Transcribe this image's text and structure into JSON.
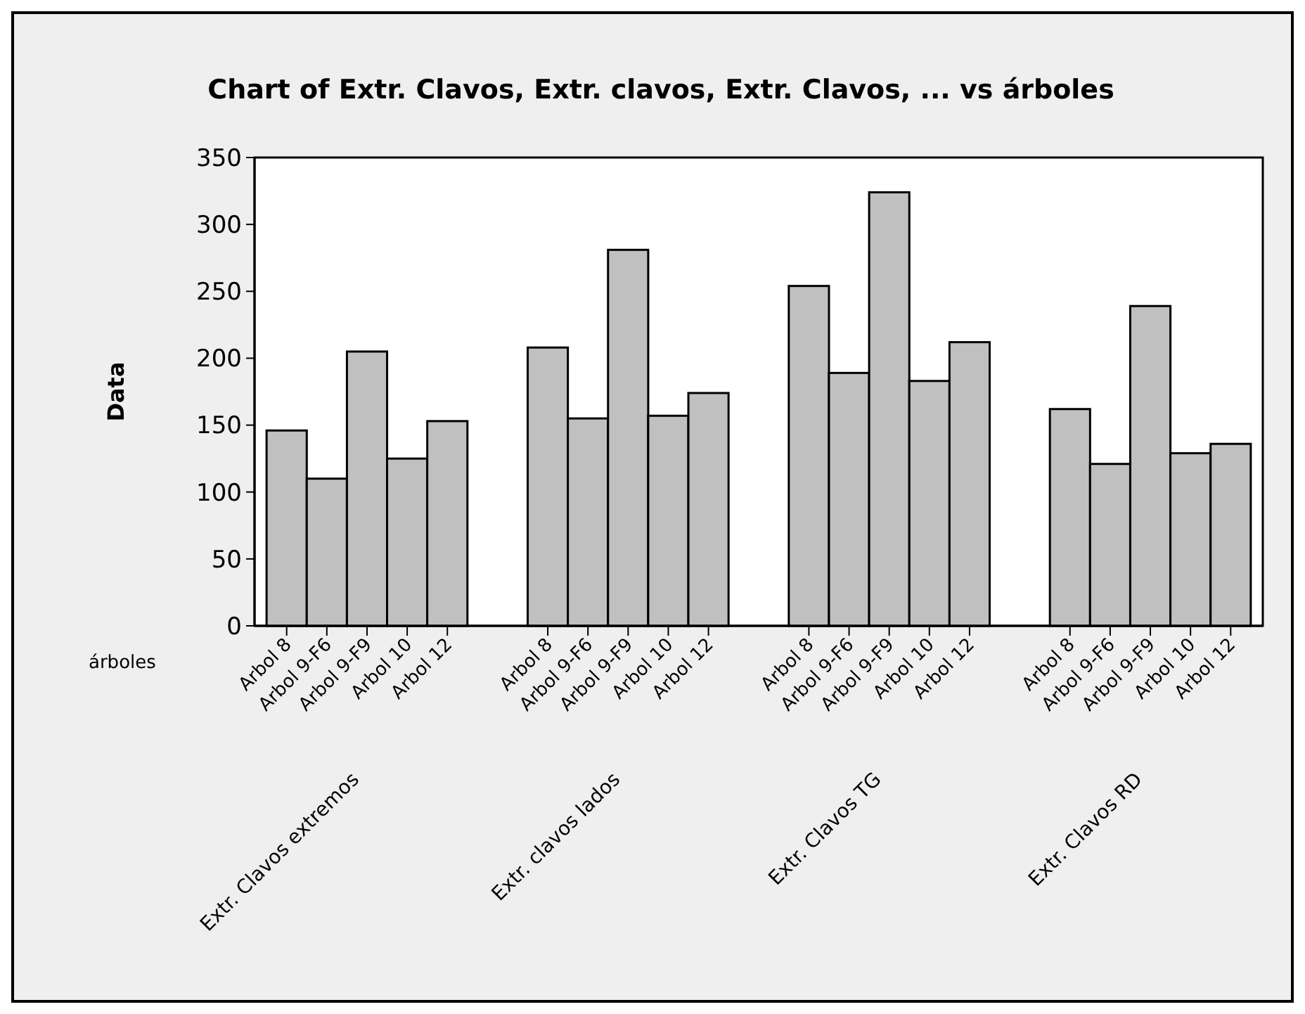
{
  "chart_data": {
    "type": "bar",
    "title": "Chart of Extr. Clavos, Extr. clavos, Extr. Clavos, ... vs árboles",
    "xlabel": "árboles",
    "ylabel": "Data",
    "categories": [
      "Arbol 8",
      "Arbol 9-F6",
      "Arbol 9-F9",
      "Arbol 10",
      "Arbol 12",
      "Arbol 8",
      "Arbol 9-F6",
      "Arbol 9-F9",
      "Arbol 10",
      "Arbol 12",
      "Arbol 8",
      "Arbol 9-F6",
      "Arbol 9-F9",
      "Arbol 10",
      "Arbol 12",
      "Arbol 8",
      "Arbol 9-F6",
      "Arbol 9-F9",
      "Arbol 10",
      "Arbol 12"
    ],
    "values": [
      146,
      110,
      205,
      125,
      153,
      208,
      155,
      281,
      157,
      174,
      254,
      189,
      324,
      183,
      212,
      162,
      121,
      239,
      129,
      136
    ],
    "color": "#c0c0c0",
    "ylim": [
      0,
      350
    ],
    "yticks": [
      0,
      50,
      100,
      150,
      200,
      250,
      300,
      350
    ],
    "annotations": [
      "Extr. Clavos extremos",
      "Extr. clavos lados",
      "Extr. Clavos TG",
      "Extr. Clavos RD"
    ],
    "grid": false
  }
}
